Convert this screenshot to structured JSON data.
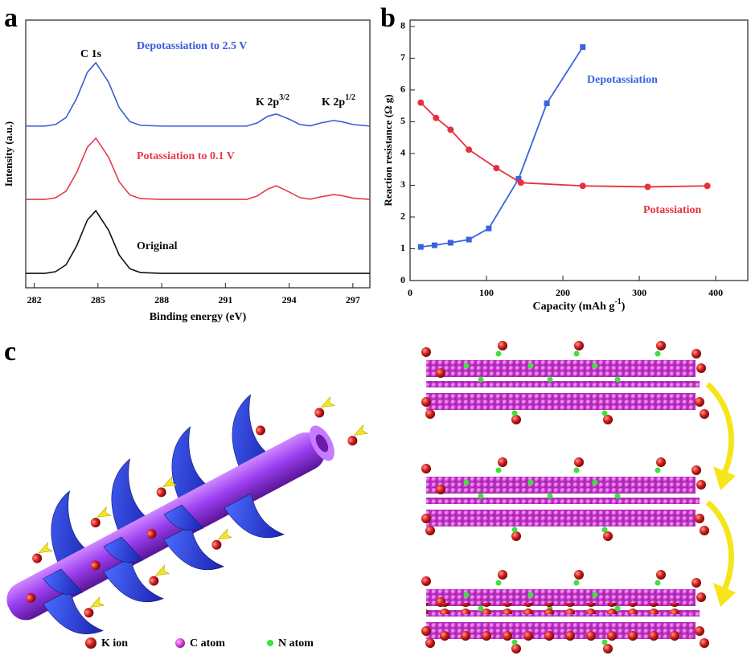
{
  "chart_data": [
    {
      "type": "line",
      "panel_label": "a",
      "x_label": "Binding energy (eV)",
      "y_label": "Intensity (a.u.)",
      "xlim": [
        281.6,
        297.8
      ],
      "ylim": [
        0,
        100
      ],
      "xticks": [
        282,
        285,
        288,
        291,
        294,
        297
      ],
      "x": [
        281.6,
        282,
        282.5,
        283,
        283.5,
        284,
        284.5,
        284.9,
        285.5,
        286,
        286.5,
        287,
        288,
        289,
        290,
        291,
        292,
        292.5,
        293,
        293.4,
        294,
        294.5,
        295,
        295.5,
        296.1,
        296.5,
        297,
        297.8
      ],
      "series": [
        {
          "name": "Depotassiation to 2.5 V",
          "color": "#3a5bd9",
          "values": [
            60.4,
            60.4,
            60.4,
            61,
            63.6,
            70.8,
            80.5,
            84.1,
            76.8,
            67.3,
            62.1,
            60.7,
            60.4,
            60.4,
            60.4,
            60.4,
            60.4,
            61.6,
            64.1,
            64.9,
            63,
            61,
            60.5,
            61.6,
            62.5,
            62,
            61,
            60.4
          ]
        },
        {
          "name": "Potassiation to 0.1 V",
          "color": "#e8394a",
          "values": [
            33,
            33,
            33,
            33.6,
            36.1,
            43.1,
            52.5,
            55.9,
            48.8,
            39.6,
            34.7,
            33.3,
            33,
            33,
            33,
            33,
            33,
            34.3,
            36.9,
            38.1,
            35.8,
            33.7,
            33.1,
            34,
            34.8,
            34.4,
            33.5,
            33
          ]
        },
        {
          "name": "Original",
          "color": "#111111",
          "values": [
            5.4,
            5.4,
            5.4,
            6,
            8.6,
            15.7,
            25.3,
            28.8,
            21.5,
            12.2,
            7.1,
            5.7,
            5.4,
            5.4,
            5.4,
            5.4,
            5.4,
            5.4,
            5.4,
            5.4,
            5.4,
            5.4,
            5.4,
            5.4,
            5.4,
            5.4,
            5.4,
            5.4
          ]
        }
      ],
      "annotations": [
        {
          "text": "C 1s"
        },
        {
          "text": "K 2p",
          "sup": "3/2"
        },
        {
          "text": "K 2p",
          "sup": "1/2"
        }
      ]
    },
    {
      "type": "line",
      "panel_label": "b",
      "markers": true,
      "x_label": [
        "Capacity (mAh g",
        "-1",
        ")"
      ],
      "y_label": "Reaction resistance (Ω g)",
      "xlim": [
        0,
        442
      ],
      "ylim": [
        0,
        8.2
      ],
      "xticks": [
        0,
        100,
        200,
        300,
        400
      ],
      "yticks": [
        0,
        1,
        2,
        3,
        4,
        5,
        6,
        7,
        8
      ],
      "series": [
        {
          "name": "Depotassiation",
          "color": "#3a63e0",
          "marker": "square",
          "x": [
            14,
            32,
            53,
            77,
            103,
            142,
            179,
            226
          ],
          "values": [
            1.06,
            1.11,
            1.19,
            1.29,
            1.64,
            3.2,
            5.58,
            7.35
          ]
        },
        {
          "name": "Potassiation",
          "color": "#e8303c",
          "marker": "circle",
          "x": [
            14,
            34,
            53,
            77,
            113,
            145,
            226,
            311,
            389
          ],
          "values": [
            5.6,
            5.12,
            4.75,
            4.12,
            3.54,
            3.08,
            2.98,
            2.95,
            2.98
          ]
        }
      ]
    }
  ],
  "illustration": {
    "panel_label": "c",
    "legend": [
      "K ion",
      "C atom",
      "N atom"
    ]
  }
}
